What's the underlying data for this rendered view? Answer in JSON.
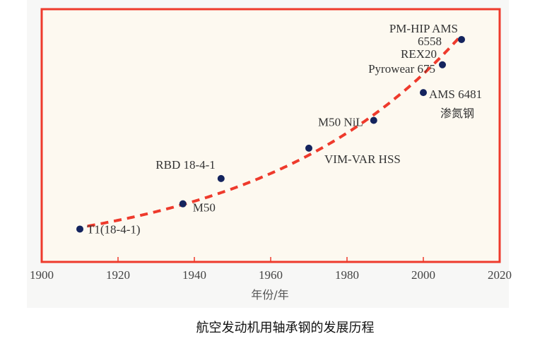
{
  "caption": "航空发动机用轴承钢的发展历程",
  "chart_data": {
    "type": "scatter",
    "xlabel": "年份/年",
    "ylabel": "",
    "xlim": [
      1900,
      2020
    ],
    "ylim": [
      0,
      100
    ],
    "xticks": [
      "1900",
      "1920",
      "1940",
      "1960",
      "1980",
      "2000",
      "2020"
    ],
    "grid": false,
    "trendline": {
      "style": "dashed",
      "color": "#ee3a2c",
      "shape": "exponential"
    },
    "colors": {
      "points": "#14245e",
      "frame": "#ee3a2c",
      "background": "#fdf9f0",
      "annotation_grey": "#888888"
    },
    "points": [
      {
        "label": "T1(18-4-1)",
        "x": 1910,
        "y": 13
      },
      {
        "label": "M50",
        "x": 1937,
        "y": 23
      },
      {
        "label": "RBD 18-4-1",
        "x": 1947,
        "y": 33
      },
      {
        "label": "VIM-VAR HSS",
        "x": 1970,
        "y": 45
      },
      {
        "label": "M50 NiL",
        "x": 1987,
        "y": 56
      },
      {
        "label": "AMS 6481",
        "x": 2000,
        "y": 67,
        "sublabel": "渗氮钢"
      },
      {
        "label": "Pyrowear 675",
        "x": 2005,
        "y": 78,
        "sublabel": "REX20"
      },
      {
        "label": "PM-HIP AMS",
        "x": 2010,
        "y": 88,
        "sublabel": "6558"
      }
    ]
  }
}
